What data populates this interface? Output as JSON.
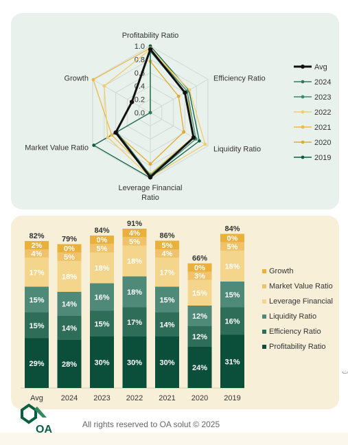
{
  "chart_data": [
    {
      "type": "radar",
      "axes": [
        "Profitability Ratio",
        "Efficiency Ratio",
        "Liquidity Ratio",
        "Leverage Financial Ratio",
        "Market Value Ratio",
        "Growth"
      ],
      "radial_ticks": [
        "1.0",
        "0.8",
        "0.6",
        "0.4",
        "0.2",
        "0.0"
      ],
      "rlim": [
        0,
        1
      ],
      "legend_position": "right",
      "series": [
        {
          "name": "Avg",
          "color": "#111111",
          "values": [
            0.95,
            0.6,
            0.75,
            0.97,
            0.6,
            0.32
          ]
        },
        {
          "name": "2024",
          "color": "#2f7a5f",
          "values": [
            0.92,
            0.6,
            0.75,
            0.94,
            0.58,
            0.0
          ]
        },
        {
          "name": "2023",
          "color": "#3b8a6a",
          "values": [
            0.94,
            0.64,
            0.79,
            0.97,
            0.6,
            0.0
          ]
        },
        {
          "name": "2022",
          "color": "#f0cc6e",
          "values": [
            0.95,
            0.68,
            0.95,
            0.97,
            0.74,
            0.8
          ]
        },
        {
          "name": "2021",
          "color": "#eab94c",
          "values": [
            0.97,
            0.64,
            0.74,
            0.92,
            0.67,
            0.99
          ]
        },
        {
          "name": "2020",
          "color": "#e4a92c",
          "values": [
            0.77,
            0.49,
            0.58,
            0.77,
            0.6,
            0.0
          ]
        },
        {
          "name": "2019",
          "color": "#0c5e43",
          "values": [
            1.0,
            0.67,
            0.85,
            0.98,
            0.98,
            0.0
          ]
        }
      ]
    },
    {
      "type": "bar",
      "stacked": true,
      "categories": [
        "Avg",
        "2024",
        "2023",
        "2022",
        "2021",
        "2020",
        "2019"
      ],
      "series": [
        {
          "name": "Profitability Ratio",
          "color": "#0b4f3b",
          "values": [
            29,
            28,
            30,
            30,
            30,
            24,
            31
          ]
        },
        {
          "name": "Efficiency Ratio",
          "color": "#2e6e58",
          "values": [
            15,
            14,
            15,
            17,
            14,
            12,
            16
          ]
        },
        {
          "name": "Liquidity Ratio",
          "color": "#4f8a79",
          "values": [
            15,
            14,
            16,
            18,
            15,
            12,
            15
          ]
        },
        {
          "name": "Leverage Financial",
          "color": "#f4d58c",
          "values": [
            17,
            18,
            18,
            18,
            17,
            15,
            18
          ]
        },
        {
          "name": "Market Value Ratio",
          "color": "#f0c36a",
          "values": [
            4,
            5,
            5,
            5,
            4,
            3,
            5
          ]
        },
        {
          "name": "Growth",
          "color": "#e9b03b",
          "values": [
            2,
            0,
            0,
            4,
            5,
            0,
            0
          ]
        }
      ],
      "totals": [
        82,
        79,
        84,
        91,
        86,
        66,
        84
      ],
      "unit": "%",
      "legend_position": "right"
    }
  ],
  "footer": {
    "text": "All rights reserved to OA solut © 2025",
    "logo_text": "OA"
  },
  "colors": {
    "radar_panel_bg": "#e8f1ec",
    "bar_panel_bg": "#f8efd9",
    "brand_green": "#0c5e43"
  }
}
